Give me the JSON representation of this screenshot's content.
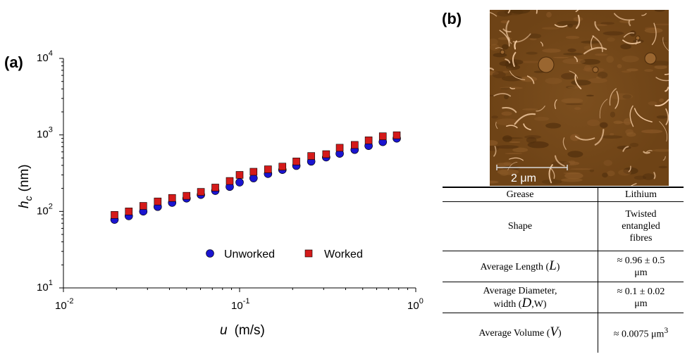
{
  "panel_a_label": "(a)",
  "panel_b_label": "(b)",
  "chart_data": {
    "type": "scatter",
    "xscale": "log",
    "yscale": "log",
    "xlim": [
      0.01,
      1
    ],
    "ylim": [
      10,
      10000
    ],
    "xlabel_var": "u",
    "xlabel_unit": "(m/s)",
    "ylabel_var": "h",
    "ylabel_sub": "c",
    "ylabel_unit": "(nm)",
    "x_ticks": [
      {
        "base": "10",
        "exp": "-2"
      },
      {
        "base": "10",
        "exp": "-1"
      },
      {
        "base": "10",
        "exp": "0"
      }
    ],
    "y_ticks": [
      {
        "base": "10",
        "exp": "1"
      },
      {
        "base": "10",
        "exp": "2"
      },
      {
        "base": "10",
        "exp": "3"
      },
      {
        "base": "10",
        "exp": "4"
      }
    ],
    "legend_position": "lower-right",
    "series": [
      {
        "name": "Unworked",
        "marker": "circle",
        "color": "#1a14cf",
        "x": [
          0.0195,
          0.0235,
          0.0284,
          0.0343,
          0.0414,
          0.05,
          0.0603,
          0.0728,
          0.0879,
          0.1,
          0.12,
          0.145,
          0.175,
          0.21,
          0.255,
          0.31,
          0.37,
          0.45,
          0.54,
          0.65,
          0.78
        ],
        "y": [
          78,
          87,
          100,
          115,
          130,
          148,
          165,
          186,
          210,
          240,
          272,
          310,
          350,
          395,
          450,
          510,
          570,
          640,
          720,
          810,
          900
        ]
      },
      {
        "name": "Worked",
        "marker": "square",
        "color": "#d41a1a",
        "x": [
          0.0195,
          0.0235,
          0.0284,
          0.0343,
          0.0414,
          0.05,
          0.0603,
          0.0728,
          0.0879,
          0.1,
          0.12,
          0.145,
          0.175,
          0.21,
          0.255,
          0.31,
          0.37,
          0.45,
          0.54,
          0.65,
          0.78
        ],
        "y": [
          90,
          100,
          118,
          135,
          150,
          160,
          180,
          205,
          250,
          300,
          330,
          355,
          385,
          450,
          530,
          560,
          680,
          740,
          850,
          960,
          990
        ]
      }
    ]
  },
  "afm_image": {
    "scale_label": "2 μm",
    "background": "#6e4316"
  },
  "table": {
    "rows": [
      {
        "label": "Grease",
        "value": "Lithium"
      },
      {
        "label": "Shape",
        "value": "Twisted entangled fibres"
      },
      {
        "label_pre": "Average Length (",
        "symbol": "L",
        "label_post": ")",
        "value_l1": "≈  0.96 ± 0.5",
        "value_l2": "μm"
      },
      {
        "label_l1": "Average Diameter,",
        "label_pre": "width (",
        "symbol": "D",
        "label_post": ",W)",
        "value_l1": "≈ 0.1 ± 0.02",
        "value_l2": "μm"
      },
      {
        "label_pre": "Average Volume (",
        "symbol": "V",
        "label_post": ")",
        "value": "≈ 0.0075 μm",
        "value_sup": "3"
      }
    ]
  }
}
